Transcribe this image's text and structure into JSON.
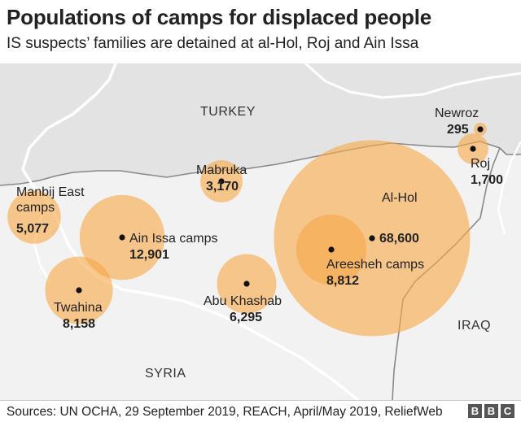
{
  "title": "Populations of camps for displaced people",
  "subtitle": "IS suspects’ families are detained at al-Hol, Roj and Ain Issa",
  "countries": {
    "turkey": "TURKEY",
    "syria": "SYRIA",
    "iraq": "IRAQ"
  },
  "camps": [
    {
      "id": "manbij-east",
      "name_lines": [
        "Manbij East",
        "camps"
      ],
      "population_label": "5,077",
      "population": 5077
    },
    {
      "id": "ain-issa",
      "name_lines": [
        "Ain Issa camps"
      ],
      "population_label": "12,901",
      "population": 12901
    },
    {
      "id": "twahina",
      "name_lines": [
        "Twahina"
      ],
      "population_label": "8,158",
      "population": 8158
    },
    {
      "id": "mabruka",
      "name_lines": [
        "Mabruka"
      ],
      "population_label": "3,170",
      "population": 3170
    },
    {
      "id": "abu-khashab",
      "name_lines": [
        "Abu Khashab"
      ],
      "population_label": "6,295",
      "population": 6295
    },
    {
      "id": "al-hol",
      "name_lines": [
        "Al-Hol"
      ],
      "population_label": "68,600",
      "population": 68600
    },
    {
      "id": "areesheh",
      "name_lines": [
        "Areesheh camps"
      ],
      "population_label": "8,812",
      "population": 8812
    },
    {
      "id": "newroz",
      "name_lines": [
        "Newroz"
      ],
      "population_label": "295",
      "population": 295
    },
    {
      "id": "roj",
      "name_lines": [
        "Roj"
      ],
      "population_label": "1,700",
      "population": 1700
    }
  ],
  "colors": {
    "circle_fill": "#f7a94a",
    "dot": "#111111",
    "land_north": "#e3e3e3",
    "land_south": "#f2f2f2",
    "river": "#ffffff",
    "border": "#888888"
  },
  "source": "Sources: UN OCHA, 29 September 2019, REACH, April/May 2019, ReliefWeb",
  "logo": [
    "B",
    "B",
    "C"
  ]
}
